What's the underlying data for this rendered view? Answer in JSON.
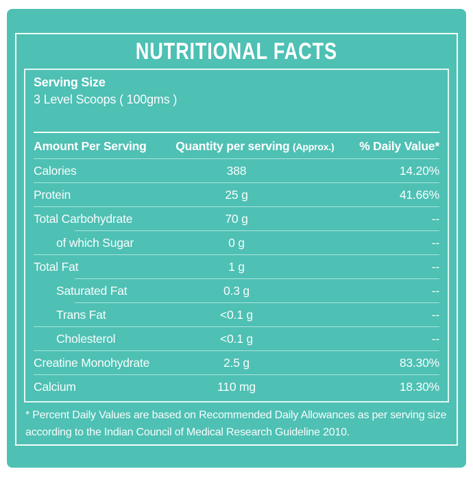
{
  "title": "NUTRITIONAL FACTS",
  "serving": {
    "label": "Serving Size",
    "value": "3 Level Scoops ( 100gms )"
  },
  "table": {
    "header": {
      "amount": "Amount Per Serving",
      "quantity": "Quantity per serving",
      "quantity_note": "(Approx.)",
      "daily_value": "% Daily Value*"
    },
    "rows": [
      {
        "name": "Calories",
        "quantity": "388",
        "daily_value": "14.20%"
      },
      {
        "name": "Protein",
        "quantity": "25 g",
        "daily_value": "41.66%"
      },
      {
        "name": "Total Carbohydrate",
        "quantity": "70 g",
        "daily_value": "--"
      },
      {
        "name": "of which Sugar",
        "quantity": "0 g",
        "daily_value": "--"
      },
      {
        "name": "Total Fat",
        "quantity": "1 g",
        "daily_value": "--"
      },
      {
        "name": "Saturated Fat",
        "quantity": "0.3 g",
        "daily_value": "--"
      },
      {
        "name": "Trans Fat",
        "quantity": "<0.1 g",
        "daily_value": "--"
      },
      {
        "name": "Cholesterol",
        "quantity": "<0.1 g",
        "daily_value": "--"
      },
      {
        "name": "Creatine Monohydrate",
        "quantity": "2.5 g",
        "daily_value": "83.30%"
      },
      {
        "name": "Calcium",
        "quantity": "110 mg",
        "daily_value": "18.30%"
      }
    ]
  },
  "footnote": {
    "line1": "* Percent Daily Values are based on Recommended Daily Allowances as per serving size",
    "line2": "according to the Indian Council of Medical Research Guideline 2010."
  },
  "colors": {
    "background": "#4EC0B4",
    "text": "#FFFFFF"
  }
}
